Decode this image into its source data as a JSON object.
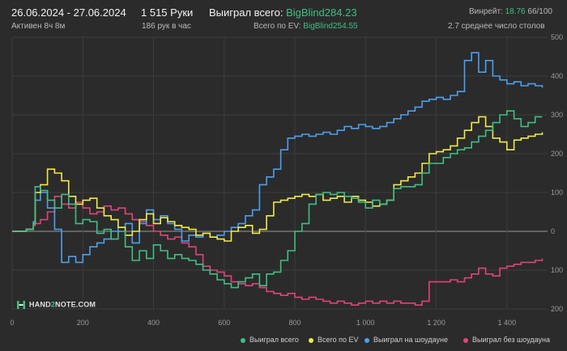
{
  "header": {
    "date_range": "26.06.2024 - 27.06.2024",
    "active": "Активен 8ч 8м",
    "hands": "1 515 Руки",
    "rate": "186 рук в час",
    "won_label": "Выиграл всего:",
    "won_value": "BigBlind284.23",
    "ev_label": "Всего по EV:",
    "ev_value": "BigBlind254.55",
    "winrate_label": "Винрейт:",
    "winrate_value": "18.76",
    "winrate_suffix": "66/100",
    "tables": "2.7 среднее число столов"
  },
  "logo": {
    "text_a": "HAND",
    "text_b": "2",
    "text_c": "NOTE.COM"
  },
  "colors": {
    "background": "#2b2b2b",
    "grid": "#3d3d3d",
    "zero_line": "#9a9a9a",
    "won": "#3fbf86",
    "ev": "#f0ea4a",
    "showdown": "#4b9ff0",
    "non_showdown": "#e0437a"
  },
  "chart_data": {
    "type": "line",
    "title": "",
    "xlabel": "",
    "ylabel": "",
    "xlim": [
      0,
      1515
    ],
    "ylim": [
      -200,
      500
    ],
    "x_ticks": [
      0,
      200,
      400,
      600,
      800,
      1000,
      1200,
      1400
    ],
    "x_tick_labels": [
      "0",
      "200",
      "400",
      "600",
      "800",
      "1 000",
      "1 200",
      "1 400"
    ],
    "y_ticks": [
      500,
      400,
      300,
      200,
      100,
      0,
      -100,
      -200
    ],
    "y_tick_labels": [
      "500",
      "400",
      "300",
      "200",
      "100",
      "0",
      "100",
      "200"
    ],
    "grid": true,
    "legend_position": "bottom-right",
    "series": [
      {
        "name": "Выиграл всего",
        "color_key": "won",
        "x": [
          0,
          40,
          60,
          65,
          80,
          100,
          120,
          140,
          160,
          180,
          200,
          220,
          240,
          260,
          280,
          300,
          320,
          340,
          360,
          380,
          400,
          420,
          440,
          460,
          480,
          500,
          520,
          540,
          560,
          580,
          600,
          620,
          640,
          660,
          680,
          700,
          720,
          740,
          760,
          780,
          800,
          820,
          840,
          860,
          880,
          900,
          920,
          940,
          960,
          980,
          1000,
          1020,
          1040,
          1060,
          1080,
          1100,
          1120,
          1140,
          1160,
          1180,
          1200,
          1220,
          1240,
          1260,
          1280,
          1300,
          1320,
          1340,
          1360,
          1380,
          1400,
          1420,
          1440,
          1460,
          1480,
          1500
        ],
        "y": [
          0,
          5,
          20,
          115,
          105,
          80,
          60,
          95,
          70,
          20,
          30,
          25,
          -5,
          5,
          -20,
          0,
          -40,
          -75,
          -50,
          -70,
          -35,
          -50,
          -70,
          -60,
          -70,
          -75,
          -85,
          -100,
          -110,
          -125,
          -135,
          -145,
          -130,
          -120,
          -110,
          -140,
          -110,
          -105,
          -75,
          -50,
          0,
          20,
          70,
          95,
          100,
          95,
          100,
          90,
          85,
          75,
          60,
          80,
          70,
          80,
          110,
          115,
          115,
          120,
          150,
          175,
          175,
          190,
          200,
          210,
          215,
          230,
          245,
          260,
          280,
          300,
          310,
          290,
          270,
          280,
          295,
          295
        ]
      },
      {
        "name": "Всего по EV",
        "color_key": "ev",
        "x": [
          0,
          40,
          60,
          65,
          80,
          100,
          120,
          140,
          160,
          180,
          200,
          220,
          240,
          260,
          280,
          300,
          320,
          340,
          360,
          380,
          400,
          420,
          440,
          460,
          480,
          500,
          520,
          540,
          560,
          580,
          600,
          620,
          640,
          660,
          680,
          700,
          720,
          740,
          760,
          780,
          800,
          820,
          840,
          860,
          880,
          900,
          920,
          940,
          960,
          980,
          1000,
          1020,
          1040,
          1060,
          1080,
          1100,
          1120,
          1140,
          1160,
          1180,
          1200,
          1220,
          1240,
          1260,
          1280,
          1300,
          1320,
          1340,
          1360,
          1380,
          1400,
          1420,
          1440,
          1460,
          1480,
          1500
        ],
        "y": [
          0,
          5,
          20,
          100,
          120,
          160,
          150,
          130,
          90,
          70,
          80,
          85,
          60,
          40,
          30,
          10,
          -10,
          0,
          30,
          45,
          20,
          35,
          25,
          15,
          10,
          5,
          -10,
          -5,
          -15,
          -20,
          -25,
          0,
          10,
          15,
          -5,
          5,
          40,
          75,
          80,
          85,
          90,
          95,
          90,
          95,
          80,
          85,
          90,
          75,
          90,
          80,
          75,
          65,
          70,
          80,
          120,
          130,
          140,
          150,
          175,
          200,
          205,
          210,
          220,
          240,
          260,
          280,
          295,
          270,
          240,
          230,
          210,
          235,
          240,
          245,
          250,
          255
        ]
      },
      {
        "name": "Выиграл на шоудауне",
        "color_key": "showdown",
        "x": [
          0,
          40,
          60,
          65,
          80,
          100,
          120,
          140,
          160,
          180,
          200,
          220,
          240,
          260,
          280,
          300,
          320,
          340,
          360,
          380,
          400,
          420,
          440,
          460,
          480,
          500,
          520,
          540,
          560,
          580,
          600,
          620,
          640,
          660,
          680,
          700,
          720,
          740,
          760,
          780,
          800,
          820,
          840,
          860,
          880,
          900,
          920,
          940,
          960,
          980,
          1000,
          1020,
          1040,
          1060,
          1080,
          1100,
          1120,
          1140,
          1160,
          1180,
          1200,
          1220,
          1240,
          1260,
          1280,
          1300,
          1320,
          1340,
          1360,
          1380,
          1400,
          1420,
          1440,
          1460,
          1480,
          1500
        ],
        "y": [
          0,
          5,
          25,
          80,
          100,
          60,
          5,
          -80,
          -65,
          -80,
          -60,
          -40,
          -30,
          -20,
          0,
          10,
          20,
          -30,
          20,
          55,
          30,
          40,
          20,
          5,
          -25,
          -10,
          -15,
          -5,
          -15,
          -10,
          0,
          10,
          20,
          40,
          55,
          120,
          140,
          160,
          210,
          240,
          245,
          250,
          245,
          250,
          255,
          250,
          260,
          270,
          265,
          275,
          270,
          265,
          270,
          280,
          290,
          300,
          310,
          320,
          335,
          340,
          345,
          340,
          350,
          360,
          440,
          460,
          410,
          440,
          400,
          390,
          380,
          385,
          375,
          380,
          375,
          370
        ]
      },
      {
        "name": "Выиграл без шоудауна",
        "color_key": "non_showdown",
        "x": [
          0,
          40,
          60,
          65,
          80,
          100,
          120,
          140,
          160,
          180,
          200,
          220,
          240,
          260,
          280,
          300,
          320,
          340,
          360,
          380,
          400,
          420,
          440,
          460,
          480,
          500,
          520,
          540,
          560,
          580,
          600,
          620,
          640,
          660,
          680,
          700,
          720,
          740,
          760,
          780,
          800,
          820,
          840,
          860,
          880,
          900,
          920,
          940,
          960,
          980,
          1000,
          1020,
          1040,
          1060,
          1080,
          1100,
          1120,
          1140,
          1160,
          1180,
          1200,
          1220,
          1240,
          1260,
          1280,
          1300,
          1320,
          1340,
          1360,
          1380,
          1400,
          1420,
          1440,
          1460,
          1480,
          1500
        ],
        "y": [
          0,
          5,
          15,
          20,
          30,
          50,
          90,
          70,
          60,
          75,
          60,
          45,
          50,
          65,
          55,
          60,
          45,
          30,
          25,
          15,
          0,
          -10,
          -20,
          -15,
          -30,
          -40,
          -60,
          -90,
          -100,
          -105,
          -115,
          -130,
          -135,
          -140,
          -135,
          -145,
          -155,
          -160,
          -165,
          -160,
          -170,
          -175,
          -170,
          -175,
          -180,
          -185,
          -180,
          -185,
          -190,
          -185,
          -180,
          -185,
          -180,
          -185,
          -180,
          -185,
          -185,
          -190,
          -180,
          -130,
          -130,
          -130,
          -125,
          -130,
          -120,
          -110,
          -95,
          -110,
          -115,
          -95,
          -90,
          -85,
          -80,
          -80,
          -75,
          -70
        ]
      }
    ]
  }
}
